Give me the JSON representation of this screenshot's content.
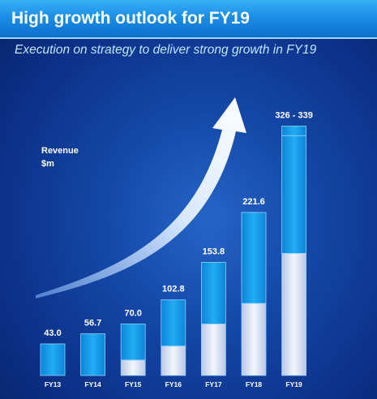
{
  "slide": {
    "title": "High growth outlook for FY19",
    "subtitle": "Execution on strategy to deliver strong growth in FY19"
  },
  "chart_data": {
    "type": "bar",
    "ylabel_line1": "Revenue",
    "ylabel_line2": "$m",
    "categories": [
      "FY13",
      "FY14",
      "FY15",
      "FY16",
      "FY17",
      "FY18",
      "FY19"
    ],
    "value_labels": [
      "43.0",
      "56.7",
      "70.0",
      "102.8",
      "153.8",
      "221.6",
      "326 - 339"
    ],
    "totals": [
      43.0,
      56.7,
      70.0,
      102.8,
      153.8,
      221.6,
      339
    ],
    "range_low": [
      null,
      null,
      null,
      null,
      null,
      null,
      326
    ],
    "series": [
      {
        "values": [
          0,
          0,
          21,
          40,
          70,
          98,
          166
        ]
      },
      {
        "values": [
          43.0,
          56.7,
          49.0,
          62.8,
          83.8,
          123.6,
          160
        ]
      }
    ],
    "colors": {
      "top_segment": "#19a3ec",
      "bottom_segment": "#dfe6f7",
      "arrow": "#e9f3ff"
    },
    "ylim": [
      0,
      345
    ],
    "grid": false,
    "legend": "none",
    "annotations": [
      "growth-arrow"
    ]
  }
}
